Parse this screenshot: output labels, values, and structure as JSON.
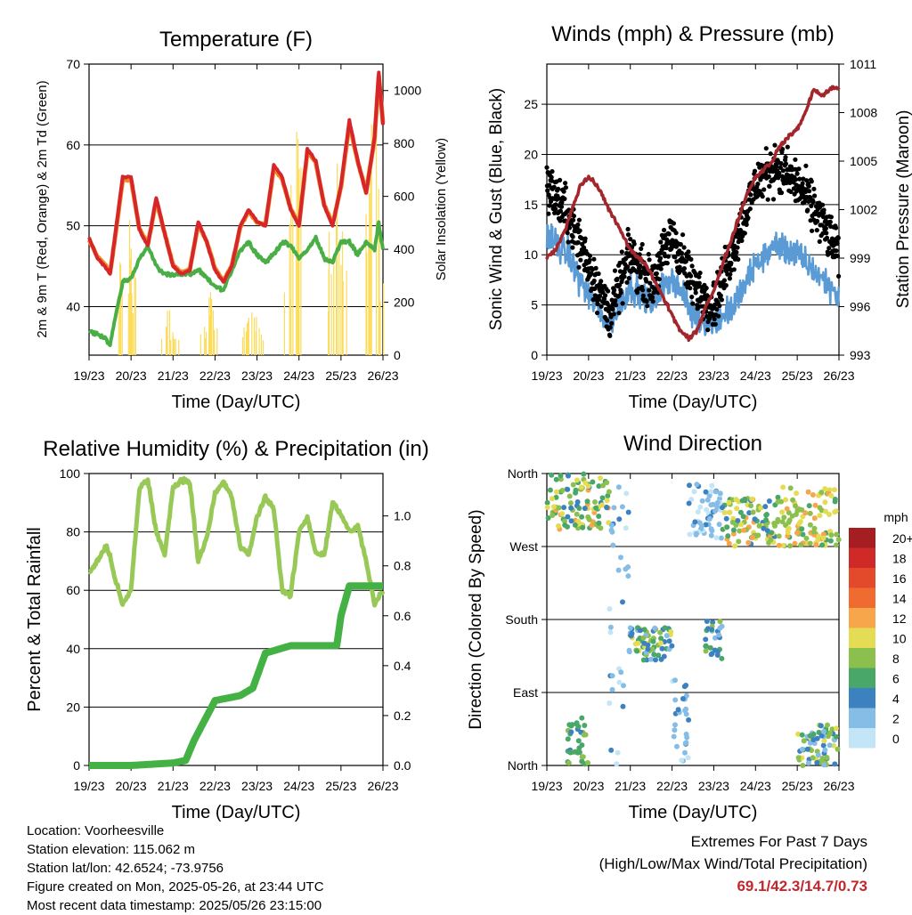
{
  "colors": {
    "temp_2m": "#d7262b",
    "temp_9m": "#f08a24",
    "dewpoint": "#48ae45",
    "solar": "#fbdc5a",
    "wind": "#5a9bd5",
    "gust": "#000000",
    "pressure": "#a3262d",
    "rh": "#98c956",
    "precip": "#43b143",
    "extremes": "#c0282e"
  },
  "x_ticks": [
    "19/23",
    "20/23",
    "21/23",
    "22/23",
    "23/23",
    "24/23",
    "25/23",
    "26/23"
  ],
  "legend": {
    "unit": "mph",
    "labels": [
      "20+",
      "18",
      "16",
      "14",
      "12",
      "10",
      "8",
      "6",
      "4",
      "2",
      "0"
    ],
    "colors": [
      "#a51e22",
      "#cf2a27",
      "#e24a2b",
      "#f06b2f",
      "#f7a64b",
      "#e4dc55",
      "#8cc04e",
      "#4aa76a",
      "#3d82c0",
      "#86bde6",
      "#c3e5f7"
    ]
  },
  "chart_data": [
    {
      "type": "line",
      "title": "Temperature (F)",
      "xlabel": "Time (Day/UTC)",
      "ylabel": "2m & 9m T (Red, Orange) & 2m Td (Green)",
      "ylabel_right": "Solar Insolation (Yellow)",
      "ylim": [
        34,
        70
      ],
      "y_ticks": [
        40,
        50,
        60,
        70
      ],
      "ylim_right": [
        0,
        1100
      ],
      "y_ticks_right": [
        0,
        200,
        400,
        600,
        800,
        1000
      ],
      "grid": true,
      "x": [
        0,
        0.2,
        0.4,
        0.5,
        0.6,
        0.8,
        1,
        1.2,
        1.4,
        1.6,
        1.8,
        2,
        2.2,
        2.4,
        2.6,
        2.8,
        3,
        3.2,
        3.4,
        3.6,
        3.8,
        4,
        4.2,
        4.4,
        4.6,
        4.8,
        5,
        5.2,
        5.4,
        5.6,
        5.8,
        6,
        6.2,
        6.4,
        6.6,
        6.8,
        6.9,
        7
      ],
      "series": [
        {
          "name": "2m T",
          "axis": "left",
          "values": [
            48.5,
            46,
            44.8,
            44,
            48,
            56,
            56,
            49.5,
            47.5,
            53.5,
            49,
            45,
            44,
            44.5,
            50.5,
            48,
            44.5,
            43,
            45,
            50,
            52,
            50.5,
            50,
            57.5,
            56,
            52,
            50,
            59.5,
            58,
            52.5,
            50,
            55,
            63,
            58,
            54,
            61,
            69,
            62.5
          ]
        },
        {
          "name": "9m T",
          "axis": "left",
          "values": [
            48.3,
            46.2,
            45,
            44.2,
            47.8,
            55.6,
            55.7,
            49.6,
            47.7,
            53.2,
            49.1,
            45.2,
            44.2,
            44.6,
            50.2,
            48.1,
            44.7,
            43.2,
            45.1,
            49.8,
            51.8,
            50.4,
            50.1,
            57.1,
            55.8,
            52.1,
            50.2,
            59.2,
            57.8,
            52.6,
            50.2,
            54.8,
            62.6,
            57.9,
            54.2,
            60.8,
            68.6,
            62.6
          ]
        },
        {
          "name": "2m Td",
          "axis": "left",
          "values": [
            37,
            36.5,
            36,
            35.3,
            38,
            43,
            43.5,
            46,
            47.5,
            45,
            44,
            44,
            44,
            44,
            44.5,
            43.5,
            42.5,
            42,
            44.5,
            47,
            48,
            46.5,
            45.5,
            46.5,
            48,
            47.5,
            46,
            47,
            48.5,
            46,
            45.5,
            48,
            48,
            46.5,
            48,
            47,
            50.5,
            47
          ]
        },
        {
          "name": "Solar",
          "axis": "right",
          "values": [
            0,
            0,
            0,
            0,
            0,
            0,
            0,
            0,
            0,
            0,
            0,
            0,
            0,
            0,
            0,
            0,
            0,
            0,
            0,
            0,
            0,
            0,
            0,
            0,
            0,
            0,
            0,
            0,
            0,
            0,
            0,
            0,
            0,
            0,
            0,
            0,
            0,
            0
          ],
          "peaks": [
            {
              "day": 0.9,
              "value": 600
            },
            {
              "day": 1.9,
              "value": 200
            },
            {
              "day": 2.9,
              "value": 250
            },
            {
              "day": 3.9,
              "value": 200
            },
            {
              "day": 4.9,
              "value": 1050
            },
            {
              "day": 5.9,
              "value": 850
            },
            {
              "day": 6.8,
              "value": 1050
            }
          ]
        }
      ]
    },
    {
      "type": "scatter",
      "title": "Winds (mph) & Pressure (mb)",
      "xlabel": "Time (Day/UTC)",
      "ylabel": "Sonic Wind & Gust (Blue, Black)",
      "ylabel_right": "Station Pressure (Maroon)",
      "ylim": [
        0,
        29
      ],
      "y_ticks": [
        0,
        5,
        10,
        15,
        20,
        25
      ],
      "ylim_right": [
        993,
        1011
      ],
      "y_ticks_right": [
        993,
        996,
        999,
        1002,
        1005,
        1008,
        1011
      ],
      "grid": true,
      "series": [
        {
          "name": "Pressure",
          "axis": "right",
          "x": [
            0,
            0.2,
            0.4,
            0.6,
            0.8,
            1,
            1.2,
            1.4,
            1.6,
            1.8,
            2,
            2.2,
            2.4,
            2.6,
            2.8,
            3,
            3.2,
            3.4,
            3.6,
            3.8,
            4,
            4.2,
            4.4,
            4.6,
            4.8,
            5,
            5.2,
            5.4,
            5.6,
            5.8,
            6,
            6.2,
            6.4,
            6.6,
            6.8,
            7
          ],
          "values": [
            999,
            999.5,
            1000.5,
            1002,
            1003.5,
            1004,
            1003.5,
            1002.5,
            1001.5,
            1000.5,
            999.5,
            999,
            998.5,
            997.5,
            996.5,
            995.5,
            994.5,
            994,
            994.5,
            996,
            997,
            998.5,
            1000,
            1001.5,
            1003,
            1004,
            1004.5,
            1005,
            1006,
            1006.5,
            1007,
            1008,
            1009.5,
            1009,
            1009.5,
            1009.5
          ]
        },
        {
          "name": "Wind",
          "axis": "left",
          "x": [
            0,
            0.5,
            1,
            1.5,
            2,
            2.5,
            3,
            3.5,
            4,
            4.5,
            5,
            5.5,
            6,
            6.5,
            7
          ],
          "values": [
            12,
            10,
            6,
            3,
            7,
            5,
            8,
            4,
            3,
            5,
            9,
            11,
            10,
            8,
            6
          ]
        },
        {
          "name": "Gust",
          "axis": "left",
          "x": [
            0,
            0.5,
            1,
            1.5,
            2,
            2.5,
            3,
            3.5,
            4,
            4.5,
            5,
            5.5,
            6,
            6.5,
            7
          ],
          "values": [
            17,
            14,
            9,
            4,
            10,
            7,
            12,
            7,
            5,
            11,
            17,
            19,
            17,
            14,
            10
          ]
        }
      ]
    },
    {
      "type": "line",
      "title": "Relative Humidity (%) & Precipitation (in)",
      "xlabel": "Time (Day/UTC)",
      "ylabel": "Percent & Total Rainfall",
      "ylim": [
        0,
        100
      ],
      "y_ticks": [
        0,
        20,
        40,
        60,
        80,
        100
      ],
      "ylim_right": [
        0,
        1.17
      ],
      "y_ticks_right": [
        0.0,
        0.2,
        0.4,
        0.6,
        0.8,
        1.0
      ],
      "grid": true,
      "series": [
        {
          "name": "RH",
          "axis": "left",
          "x": [
            0,
            0.2,
            0.4,
            0.5,
            0.6,
            0.8,
            1,
            1.2,
            1.4,
            1.6,
            1.8,
            2,
            2.2,
            2.4,
            2.6,
            2.8,
            3,
            3.2,
            3.4,
            3.6,
            3.8,
            4,
            4.2,
            4.4,
            4.6,
            4.8,
            5,
            5.2,
            5.4,
            5.6,
            5.8,
            6,
            6.2,
            6.4,
            6.6,
            6.8,
            7
          ],
          "values": [
            66,
            70,
            75,
            72,
            65,
            55,
            60,
            95,
            98,
            80,
            72,
            95,
            98,
            97,
            70,
            78,
            93,
            97,
            92,
            75,
            72,
            85,
            92,
            88,
            60,
            58,
            80,
            85,
            73,
            72,
            90,
            86,
            80,
            82,
            70,
            55,
            60
          ]
        },
        {
          "name": "Precipitation",
          "axis": "right",
          "x": [
            0,
            1,
            2,
            2.3,
            2.5,
            3,
            3.6,
            3.9,
            4.2,
            4.8,
            5,
            5.3,
            5.9,
            6.0,
            6.2,
            7
          ],
          "values": [
            0,
            0,
            0.01,
            0.02,
            0.1,
            0.26,
            0.28,
            0.31,
            0.45,
            0.48,
            0.48,
            0.48,
            0.48,
            0.6,
            0.72,
            0.72
          ]
        }
      ]
    },
    {
      "type": "scatter",
      "title": "Wind Direction",
      "xlabel": "Time (Day/UTC)",
      "ylabel": "Direction (Colored By Speed)",
      "ylim": [
        0,
        360
      ],
      "y_ticks": [
        {
          "value": 0,
          "label": "North"
        },
        {
          "value": 90,
          "label": "East"
        },
        {
          "value": 180,
          "label": "South"
        },
        {
          "value": 270,
          "label": "West"
        },
        {
          "value": 360,
          "label": "North"
        }
      ],
      "grid": true,
      "clusters": [
        {
          "x": [
            0,
            1.5
          ],
          "dir": [
            290,
            360
          ],
          "speed": [
            4,
            12
          ]
        },
        {
          "x": [
            1.5,
            2.0
          ],
          "dir": [
            0,
            360
          ],
          "speed": [
            0,
            4
          ]
        },
        {
          "x": [
            2.0,
            3.0
          ],
          "dir": [
            130,
            170
          ],
          "speed": [
            2,
            10
          ]
        },
        {
          "x": [
            3.0,
            3.4
          ],
          "dir": [
            0,
            110
          ],
          "speed": [
            0,
            4
          ]
        },
        {
          "x": [
            3.4,
            4.2
          ],
          "dir": [
            280,
            350
          ],
          "speed": [
            0,
            4
          ]
        },
        {
          "x": [
            3.8,
            4.2
          ],
          "dir": [
            130,
            180
          ],
          "speed": [
            2,
            8
          ]
        },
        {
          "x": [
            4.2,
            5.5
          ],
          "dir": [
            270,
            330
          ],
          "speed": [
            4,
            12
          ]
        },
        {
          "x": [
            5.5,
            7.0
          ],
          "dir": [
            270,
            345
          ],
          "speed": [
            6,
            12
          ]
        },
        {
          "x": [
            0.5,
            1.0
          ],
          "dir": [
            0,
            60
          ],
          "speed": [
            4,
            8
          ]
        },
        {
          "x": [
            6.0,
            7.0
          ],
          "dir": [
            0,
            50
          ],
          "speed": [
            2,
            10
          ]
        }
      ]
    }
  ],
  "meta": {
    "location": "Location: Voorheesville",
    "elevation": "Station elevation: 115.062 m",
    "latlon": "Station lat/lon: 42.6524; -73.9756",
    "created": "Figure created on Mon, 2025-05-26, at 23:44 UTC",
    "recent": "Most recent data timestamp: 2025/05/26 23:15:00"
  },
  "extremes": {
    "line1": "Extremes For Past 7 Days",
    "line2": "(High/Low/Max Wind/Total Precipitation)",
    "values": "69.1/42.3/14.7/0.73"
  }
}
